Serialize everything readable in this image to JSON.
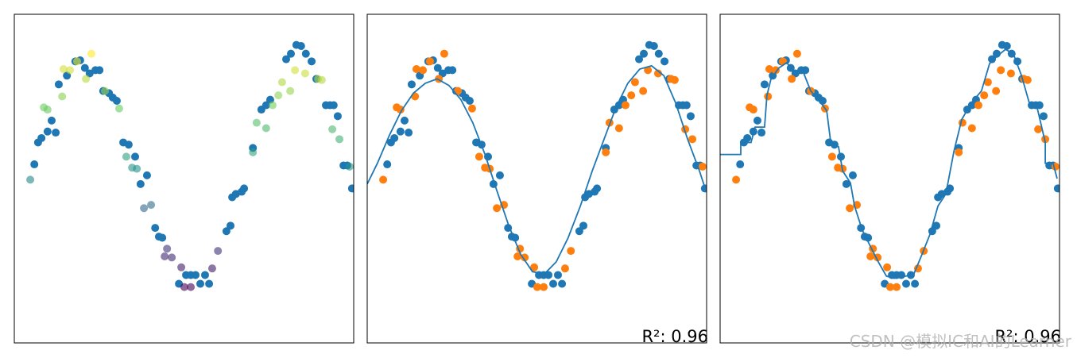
{
  "chart_data": [
    {
      "type": "scatter",
      "xlim": [
        0,
        10
      ],
      "ylim": [
        -1.5,
        1.5
      ],
      "series": [
        {
          "mode": "markers",
          "color": "#1f77b4",
          "x": [
            0.59,
            0.7,
            0.8,
            0.98,
            1.1,
            1.22,
            1.31,
            1.55,
            1.8,
            1.94,
            2.08,
            2.22,
            2.39,
            2.51,
            2.62,
            2.79,
            2.9,
            3.02,
            3.21,
            3.37,
            3.56,
            3.72,
            3.91,
            4.15,
            4.26,
            4.36,
            4.85,
            5.06,
            5.2,
            5.34,
            5.48,
            5.62,
            5.74,
            6.25,
            6.37,
            6.42,
            6.53,
            6.7,
            6.77,
            7.03,
            7.28,
            7.42,
            7.54,
            8.01,
            8.15,
            8.31,
            8.45,
            8.59,
            8.76,
            8.9,
            9.18,
            9.3,
            9.41,
            9.53,
            9.7,
            9.81,
            9.95
          ],
          "values": [
            0.13,
            0.33,
            0.37,
            0.43,
            0.53,
            0.42,
            0.86,
            0.94,
            1.07,
            1.08,
            1.01,
            0.96,
            0.99,
            0.99,
            0.8,
            0.78,
            0.74,
            0.71,
            0.33,
            0.31,
            0.2,
            -0.05,
            0.03,
            -0.45,
            -0.53,
            -0.54,
            -0.96,
            -0.88,
            -0.88,
            -0.88,
            -0.96,
            -0.88,
            -0.96,
            -0.48,
            -0.43,
            -0.17,
            -0.14,
            -0.12,
            -0.09,
            0.28,
            0.63,
            0.67,
            0.72,
            1.09,
            1.14,
            1.22,
            1.21,
            1.14,
            1.07,
            0.91,
            0.67,
            0.67,
            0.67,
            0.57,
            0.12,
            0.12,
            -0.09
          ]
        },
        {
          "mode": "markers",
          "colormap": "viridis",
          "alpha": 0.6,
          "x": [
            0.47,
            0.87,
            0.98,
            1.41,
            1.45,
            1.64,
            1.85,
            2.11,
            2.27,
            2.67,
            3.09,
            3.3,
            3.47,
            3.61,
            3.82,
            4.03,
            4.43,
            4.5,
            4.64,
            4.92,
            5.01,
            5.2,
            5.83,
            6.0,
            7.03,
            7.14,
            7.42,
            7.61,
            7.78,
            7.89,
            8.13,
            8.27,
            8.57,
            8.95,
            9.06,
            9.37,
            9.58,
            9.88
          ],
          "values": [
            -0.01,
            0.65,
            0.63,
            0.75,
            1.0,
            0.99,
            1.07,
            0.91,
            1.14,
            0.8,
            0.64,
            0.2,
            0.1,
            0.09,
            -0.27,
            -0.24,
            -0.71,
            -0.64,
            -0.72,
            -0.81,
            -0.99,
            -0.99,
            -0.82,
            -0.66,
            0.24,
            0.51,
            0.46,
            0.67,
            0.76,
            0.88,
            0.8,
            0.99,
            0.96,
            0.91,
            0.9,
            0.45,
            0.36,
            0.11
          ]
        }
      ]
    },
    {
      "type": "scatter",
      "xlim": [
        0,
        10
      ],
      "ylim": [
        -1.5,
        1.5
      ],
      "annotation": "R²: 0.96",
      "series": [
        {
          "mode": "markers",
          "color": "#1f77b4",
          "x": [
            0.59,
            0.7,
            0.8,
            0.98,
            1.1,
            1.22,
            1.31,
            1.55,
            1.8,
            1.94,
            2.08,
            2.22,
            2.39,
            2.51,
            2.62,
            2.79,
            2.9,
            3.02,
            3.21,
            3.37,
            3.56,
            3.72,
            3.91,
            4.15,
            4.26,
            4.36,
            4.85,
            5.06,
            5.2,
            5.34,
            5.48,
            5.62,
            5.74,
            6.25,
            6.37,
            6.42,
            6.53,
            6.7,
            6.77,
            7.03,
            7.28,
            7.42,
            7.54,
            8.01,
            8.15,
            8.31,
            8.45,
            8.59,
            8.76,
            8.9,
            9.18,
            9.3,
            9.41,
            9.53,
            9.7,
            9.81,
            9.95
          ],
          "values": [
            0.13,
            0.33,
            0.37,
            0.43,
            0.53,
            0.42,
            0.86,
            0.94,
            1.07,
            1.08,
            1.01,
            0.96,
            0.99,
            0.99,
            0.8,
            0.78,
            0.74,
            0.71,
            0.33,
            0.31,
            0.2,
            -0.05,
            0.03,
            -0.45,
            -0.53,
            -0.54,
            -0.96,
            -0.88,
            -0.88,
            -0.88,
            -0.96,
            -0.88,
            -0.96,
            -0.48,
            -0.43,
            -0.17,
            -0.14,
            -0.12,
            -0.09,
            0.28,
            0.63,
            0.67,
            0.72,
            1.09,
            1.14,
            1.22,
            1.21,
            1.14,
            1.07,
            0.91,
            0.67,
            0.67,
            0.67,
            0.57,
            0.12,
            0.12,
            -0.09
          ]
        },
        {
          "mode": "markers",
          "color": "#ff7f0e",
          "x": [
            0.47,
            0.87,
            0.98,
            1.41,
            1.45,
            1.64,
            1.85,
            2.11,
            2.27,
            2.67,
            3.09,
            3.3,
            3.47,
            3.61,
            3.82,
            4.03,
            4.43,
            4.5,
            4.64,
            4.92,
            5.01,
            5.2,
            5.83,
            6.0,
            7.03,
            7.14,
            7.42,
            7.61,
            7.78,
            7.89,
            8.13,
            8.27,
            8.57,
            8.95,
            9.06,
            9.37,
            9.58,
            9.88
          ],
          "values": [
            -0.01,
            0.65,
            0.63,
            0.75,
            1.0,
            0.99,
            1.07,
            0.91,
            1.14,
            0.8,
            0.64,
            0.2,
            0.1,
            0.09,
            -0.27,
            -0.24,
            -0.71,
            -0.64,
            -0.72,
            -0.81,
            -0.99,
            -0.99,
            -0.82,
            -0.66,
            0.24,
            0.51,
            0.46,
            0.67,
            0.76,
            0.88,
            0.8,
            0.99,
            0.96,
            0.91,
            0.9,
            0.45,
            0.36,
            0.11
          ]
        },
        {
          "mode": "line",
          "color": "#1f77b4",
          "x": [
            0,
            0.3,
            0.66,
            1.01,
            1.36,
            1.71,
            2.06,
            2.41,
            2.76,
            3.11,
            3.47,
            3.82,
            4.17,
            4.52,
            4.87,
            5.22,
            5.57,
            5.92,
            6.28,
            6.63,
            6.98,
            7.33,
            7.68,
            8.03,
            8.38,
            8.74,
            9.09,
            9.44,
            9.79,
            9.98
          ],
          "values": [
            -0.05,
            0.14,
            0.4,
            0.62,
            0.78,
            0.87,
            0.91,
            0.85,
            0.72,
            0.51,
            0.22,
            -0.11,
            -0.43,
            -0.69,
            -0.85,
            -0.87,
            -0.76,
            -0.54,
            -0.25,
            0.07,
            0.36,
            0.65,
            0.87,
            1.0,
            1.03,
            0.94,
            0.69,
            0.36,
            0.07,
            -0.11
          ]
        }
      ]
    },
    {
      "type": "scatter",
      "xlim": [
        0,
        10
      ],
      "ylim": [
        -1.5,
        1.5
      ],
      "annotation": "R²: 0.96",
      "series": [
        {
          "mode": "markers",
          "color": "#1f77b4",
          "x": [
            0.59,
            0.7,
            0.8,
            0.98,
            1.1,
            1.22,
            1.31,
            1.55,
            1.8,
            1.94,
            2.08,
            2.22,
            2.39,
            2.51,
            2.62,
            2.79,
            2.9,
            3.02,
            3.21,
            3.37,
            3.56,
            3.72,
            3.91,
            4.15,
            4.26,
            4.36,
            4.85,
            5.06,
            5.2,
            5.34,
            5.48,
            5.62,
            5.74,
            6.25,
            6.37,
            6.42,
            6.53,
            6.7,
            6.77,
            7.03,
            7.28,
            7.42,
            7.54,
            8.01,
            8.15,
            8.31,
            8.45,
            8.59,
            8.76,
            8.9,
            9.18,
            9.3,
            9.41,
            9.53,
            9.7,
            9.81,
            9.95
          ],
          "values": [
            0.13,
            0.33,
            0.37,
            0.43,
            0.53,
            0.42,
            0.86,
            0.94,
            1.07,
            1.08,
            1.01,
            0.96,
            0.99,
            0.99,
            0.8,
            0.78,
            0.74,
            0.71,
            0.33,
            0.31,
            0.2,
            -0.05,
            0.03,
            -0.45,
            -0.53,
            -0.54,
            -0.96,
            -0.88,
            -0.88,
            -0.88,
            -0.96,
            -0.88,
            -0.96,
            -0.48,
            -0.43,
            -0.17,
            -0.14,
            -0.12,
            -0.09,
            0.28,
            0.63,
            0.67,
            0.72,
            1.09,
            1.14,
            1.22,
            1.21,
            1.14,
            1.07,
            0.91,
            0.67,
            0.67,
            0.67,
            0.57,
            0.12,
            0.12,
            -0.09
          ]
        },
        {
          "mode": "markers",
          "color": "#ff7f0e",
          "x": [
            0.47,
            0.87,
            0.98,
            1.41,
            1.45,
            1.64,
            1.85,
            2.11,
            2.27,
            2.67,
            3.09,
            3.3,
            3.47,
            3.61,
            3.82,
            4.03,
            4.43,
            4.5,
            4.64,
            4.92,
            5.01,
            5.2,
            5.83,
            6.0,
            7.03,
            7.14,
            7.42,
            7.61,
            7.78,
            7.89,
            8.13,
            8.27,
            8.57,
            8.95,
            9.06,
            9.37,
            9.58,
            9.88
          ],
          "values": [
            -0.01,
            0.65,
            0.63,
            0.75,
            1.0,
            0.99,
            1.07,
            0.91,
            1.14,
            0.8,
            0.64,
            0.2,
            0.1,
            0.09,
            -0.27,
            -0.24,
            -0.71,
            -0.64,
            -0.72,
            -0.81,
            -0.99,
            -0.99,
            -0.82,
            -0.66,
            0.24,
            0.51,
            0.46,
            0.67,
            0.76,
            0.88,
            0.8,
            0.99,
            0.96,
            0.91,
            0.9,
            0.45,
            0.36,
            0.11
          ]
        },
        {
          "mode": "line",
          "color": "#1f77b4",
          "x": [
            0,
            0.61,
            0.61,
            0.91,
            1.03,
            1.31,
            1.38,
            1.5,
            1.73,
            1.97,
            2.2,
            2.44,
            2.67,
            2.9,
            3.14,
            3.26,
            3.49,
            3.61,
            3.84,
            3.96,
            4.19,
            4.43,
            4.66,
            4.9,
            5.13,
            5.48,
            5.71,
            5.95,
            6.18,
            6.42,
            6.65,
            6.89,
            7.12,
            7.4,
            7.7,
            7.94,
            8.17,
            8.41,
            8.64,
            8.88,
            9.11,
            9.34,
            9.58,
            9.58,
            9.81,
            9.93
          ],
          "values": [
            0.22,
            0.22,
            0.33,
            0.33,
            0.47,
            0.47,
            0.76,
            0.91,
            1.01,
            1.06,
            0.94,
            0.98,
            0.8,
            0.72,
            0.62,
            0.33,
            0.29,
            0.07,
            -0.04,
            -0.25,
            -0.47,
            -0.62,
            -0.76,
            -0.89,
            -0.91,
            -0.89,
            -0.87,
            -0.69,
            -0.51,
            -0.25,
            -0.14,
            0.25,
            0.54,
            0.69,
            0.8,
            1.05,
            1.12,
            1.18,
            1.14,
            0.94,
            0.69,
            0.65,
            0.33,
            0.14,
            0.14,
            0.0
          ]
        }
      ]
    }
  ],
  "watermark": "CSDN @模拟IC和AI的Learner"
}
